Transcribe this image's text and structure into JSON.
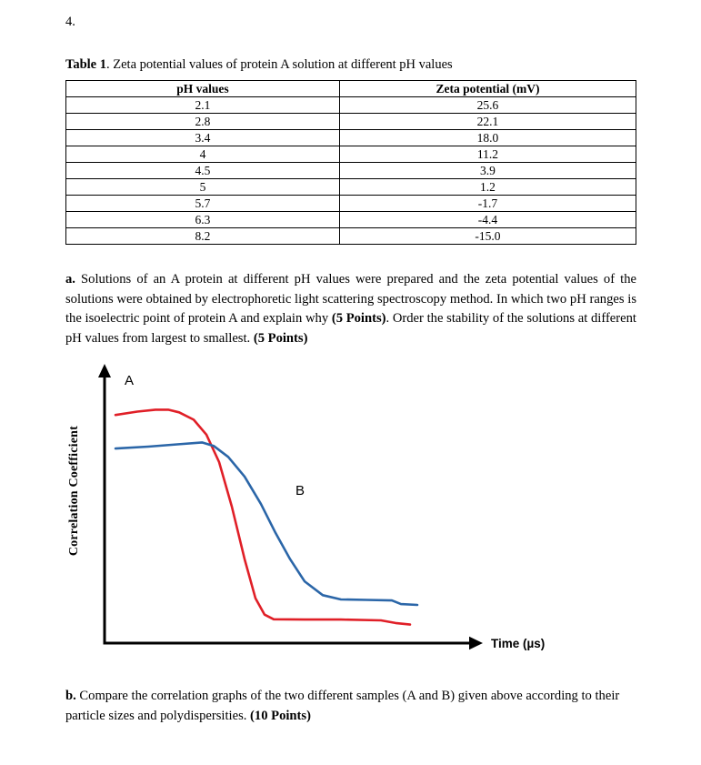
{
  "page": {
    "question_number": "4."
  },
  "table_caption_runs": [
    {
      "text": "Table 1",
      "bold": true
    },
    {
      "text": ". Zeta potential values of protein A solution at different pH values",
      "bold": false
    }
  ],
  "table": {
    "headers": [
      "pH values",
      "Zeta potential (mV)"
    ],
    "rows": [
      [
        "2.1",
        "25.6"
      ],
      [
        "2.8",
        "22.1"
      ],
      [
        "3.4",
        "18.0"
      ],
      [
        "4",
        "11.2"
      ],
      [
        "4.5",
        "3.9"
      ],
      [
        "5",
        "1.2"
      ],
      [
        "5.7",
        "-1.7"
      ],
      [
        "6.3",
        "-4.4"
      ],
      [
        "8.2",
        "-15.0"
      ]
    ]
  },
  "question_a_runs": [
    {
      "text": "a.",
      "bold": true
    },
    {
      "text": " Solutions of an A protein at different pH values were prepared and the zeta potential values of the solutions were obtained by electrophoretic light scattering spectroscopy method. In which two pH ranges is the isoelectric point of protein A and explain why ",
      "bold": false
    },
    {
      "text": "(5 Points)",
      "bold": true
    },
    {
      "text": ". Order the stability of the solutions at different pH values from largest to smallest. ",
      "bold": false
    },
    {
      "text": "(5 Points)",
      "bold": true
    }
  ],
  "question_b_runs": [
    {
      "text": "b.",
      "bold": true
    },
    {
      "text": " Compare the correlation graphs of the two different samples (A and B) given above according to their particle sizes and polydispersities. ",
      "bold": false
    },
    {
      "text": "(10 Points)",
      "bold": true
    }
  ],
  "chart_data": {
    "type": "line",
    "title": "",
    "xlabel": "Time (µs)",
    "ylabel": "Correlation Coefficient",
    "x_ticks": [],
    "y_ticks": [],
    "axes_note": "schematic sigmoidal decay curves; no tick values shown; point coordinates normalized 0-1 (x = fraction of time axis, y = 0 at max correlation, 1 at baseline)",
    "legend": "curves labeled directly on plot",
    "series": [
      {
        "name": "A",
        "color": "#e01f27",
        "points": [
          [
            0.03,
            0.15
          ],
          [
            0.09,
            0.137
          ],
          [
            0.14,
            0.13
          ],
          [
            0.175,
            0.13
          ],
          [
            0.205,
            0.14
          ],
          [
            0.245,
            0.168
          ],
          [
            0.28,
            0.225
          ],
          [
            0.315,
            0.33
          ],
          [
            0.35,
            0.5
          ],
          [
            0.385,
            0.7
          ],
          [
            0.415,
            0.85
          ],
          [
            0.44,
            0.912
          ],
          [
            0.465,
            0.93
          ],
          [
            0.55,
            0.931
          ],
          [
            0.65,
            0.931
          ],
          [
            0.76,
            0.934
          ],
          [
            0.8,
            0.944
          ],
          [
            0.84,
            0.95
          ]
        ]
      },
      {
        "name": "B",
        "color": "#2b66a8",
        "points": [
          [
            0.03,
            0.278
          ],
          [
            0.12,
            0.271
          ],
          [
            0.2,
            0.262
          ],
          [
            0.268,
            0.255
          ],
          [
            0.3,
            0.268
          ],
          [
            0.34,
            0.31
          ],
          [
            0.385,
            0.385
          ],
          [
            0.43,
            0.49
          ],
          [
            0.47,
            0.6
          ],
          [
            0.51,
            0.7
          ],
          [
            0.55,
            0.785
          ],
          [
            0.6,
            0.838
          ],
          [
            0.65,
            0.854
          ],
          [
            0.72,
            0.856
          ],
          [
            0.79,
            0.858
          ],
          [
            0.815,
            0.872
          ],
          [
            0.86,
            0.875
          ]
        ]
      }
    ],
    "annotations": [
      {
        "text": "A",
        "x": 0.055,
        "y": 0.035
      },
      {
        "text": "B",
        "x": 0.525,
        "y": 0.455
      }
    ]
  }
}
